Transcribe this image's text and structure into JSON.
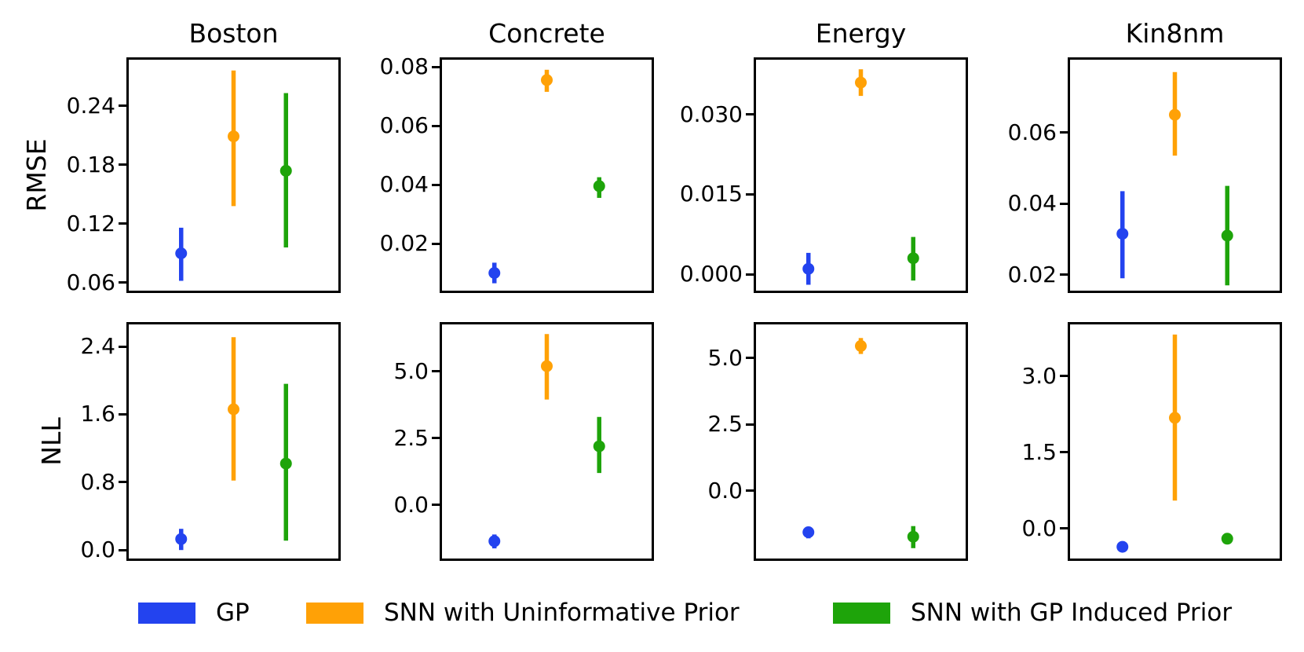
{
  "figure_title": "",
  "titles": [
    "Boston",
    "Concrete",
    "Energy",
    "Kin8nm"
  ],
  "row_labels": [
    "RMSE",
    "NLL"
  ],
  "colors": {
    "gp": "#2343ef",
    "snn_uninformative": "#ffa106",
    "snn_gp_induced": "#1ea40a"
  },
  "legend": {
    "position": "bottom-center",
    "items": [
      {
        "label": "GP",
        "color_key": "gp"
      },
      {
        "label": "SNN with Uninformative Prior",
        "color_key": "snn_uninformative"
      },
      {
        "label": "SNN with GP Induced Prior",
        "color_key": "snn_gp_induced"
      }
    ]
  },
  "chart_data": [
    {
      "type": "scatter",
      "metric": "RMSE",
      "dataset": "Boston",
      "grid": "on? no - grid off",
      "ylim": [
        0.052,
        0.287
      ],
      "ytick_values": [
        0.06,
        0.12,
        0.18,
        0.24
      ],
      "ytick_labels": [
        "0.06",
        "0.12",
        "0.18",
        "0.24"
      ],
      "series": [
        {
          "name": "GP",
          "y": 0.09,
          "err_lo": 0.062,
          "err_hi": 0.116
        },
        {
          "name": "SNN with Uninformative Prior",
          "y": 0.209,
          "err_lo": 0.138,
          "err_hi": 0.276
        },
        {
          "name": "SNN with GP Induced Prior",
          "y": 0.174,
          "err_lo": 0.096,
          "err_hi": 0.253
        }
      ]
    },
    {
      "type": "scatter",
      "metric": "RMSE",
      "dataset": "Concrete",
      "ylim": [
        0.004,
        0.0824
      ],
      "ytick_values": [
        0.02,
        0.04,
        0.06,
        0.08
      ],
      "ytick_labels": [
        "0.02",
        "0.04",
        "0.06",
        "0.08"
      ],
      "series": [
        {
          "name": "GP",
          "y": 0.01,
          "err_lo": 0.0065,
          "err_hi": 0.0135
        },
        {
          "name": "SNN with Uninformative Prior",
          "y": 0.0755,
          "err_lo": 0.0715,
          "err_hi": 0.079
        },
        {
          "name": "SNN with GP Induced Prior",
          "y": 0.0395,
          "err_lo": 0.0355,
          "err_hi": 0.0425
        }
      ]
    },
    {
      "type": "scatter",
      "metric": "RMSE",
      "dataset": "Energy",
      "ylim": [
        -0.0031,
        0.0403
      ],
      "ytick_values": [
        0.0,
        0.015,
        0.03
      ],
      "ytick_labels": [
        "0.000",
        "0.015",
        "0.030"
      ],
      "series": [
        {
          "name": "GP",
          "y": 0.001,
          "err_lo": -0.002,
          "err_hi": 0.004
        },
        {
          "name": "SNN with Uninformative Prior",
          "y": 0.036,
          "err_lo": 0.0335,
          "err_hi": 0.0385
        },
        {
          "name": "SNN with GP Induced Prior",
          "y": 0.003,
          "err_lo": -0.0012,
          "err_hi": 0.007
        }
      ]
    },
    {
      "type": "scatter",
      "metric": "RMSE",
      "dataset": "Kin8nm",
      "ylim": [
        0.0155,
        0.0805
      ],
      "ytick_values": [
        0.02,
        0.04,
        0.06
      ],
      "ytick_labels": [
        "0.02",
        "0.04",
        "0.06"
      ],
      "series": [
        {
          "name": "GP",
          "y": 0.0315,
          "err_lo": 0.019,
          "err_hi": 0.0435
        },
        {
          "name": "SNN with Uninformative Prior",
          "y": 0.065,
          "err_lo": 0.0535,
          "err_hi": 0.077
        },
        {
          "name": "SNN with GP Induced Prior",
          "y": 0.031,
          "err_lo": 0.017,
          "err_hi": 0.045
        }
      ]
    },
    {
      "type": "scatter",
      "metric": "NLL",
      "dataset": "Boston",
      "ylim": [
        -0.1,
        2.66
      ],
      "ytick_values": [
        0.0,
        0.8,
        1.6,
        2.4
      ],
      "ytick_labels": [
        "0.0",
        "0.8",
        "1.6",
        "2.4"
      ],
      "series": [
        {
          "name": "GP",
          "y": 0.13,
          "err_lo": 0.0,
          "err_hi": 0.25
        },
        {
          "name": "SNN with Uninformative Prior",
          "y": 1.66,
          "err_lo": 0.82,
          "err_hi": 2.51
        },
        {
          "name": "SNN with GP Induced Prior",
          "y": 1.02,
          "err_lo": 0.11,
          "err_hi": 1.96
        }
      ]
    },
    {
      "type": "scatter",
      "metric": "NLL",
      "dataset": "Concrete",
      "ylim": [
        -2.0,
        6.76
      ],
      "ytick_values": [
        0.0,
        2.5,
        5.0
      ],
      "ytick_labels": [
        "0.0",
        "2.5",
        "5.0"
      ],
      "series": [
        {
          "name": "GP",
          "y": -1.35,
          "err_lo": -1.62,
          "err_hi": -1.1
        },
        {
          "name": "SNN with Uninformative Prior",
          "y": 5.2,
          "err_lo": 3.95,
          "err_hi": 6.4
        },
        {
          "name": "SNN with GP Induced Prior",
          "y": 2.2,
          "err_lo": 1.2,
          "err_hi": 3.3
        }
      ]
    },
    {
      "type": "scatter",
      "metric": "NLL",
      "dataset": "Energy",
      "ylim": [
        -2.54,
        6.26
      ],
      "ytick_values": [
        0.0,
        2.5,
        5.0
      ],
      "ytick_labels": [
        "0.0",
        "2.5",
        "5.0"
      ],
      "series": [
        {
          "name": "GP",
          "y": -1.55,
          "err_lo": -1.78,
          "err_hi": -1.35
        },
        {
          "name": "SNN with Uninformative Prior",
          "y": 5.45,
          "err_lo": 5.15,
          "err_hi": 5.75
        },
        {
          "name": "SNN with GP Induced Prior",
          "y": -1.72,
          "err_lo": -2.15,
          "err_hi": -1.32
        }
      ]
    },
    {
      "type": "scatter",
      "metric": "NLL",
      "dataset": "Kin8nm",
      "ylim": [
        -0.59,
        4.02
      ],
      "ytick_values": [
        0.0,
        1.5,
        3.0
      ],
      "ytick_labels": [
        "0.0",
        "1.5",
        "3.0"
      ],
      "series": [
        {
          "name": "GP",
          "y": -0.36,
          "err_lo": -0.36,
          "err_hi": -0.36
        },
        {
          "name": "SNN with Uninformative Prior",
          "y": 2.18,
          "err_lo": 0.55,
          "err_hi": 3.82
        },
        {
          "name": "SNN with GP Induced Prior",
          "y": -0.2,
          "err_lo": -0.2,
          "err_hi": -0.2
        }
      ]
    }
  ]
}
